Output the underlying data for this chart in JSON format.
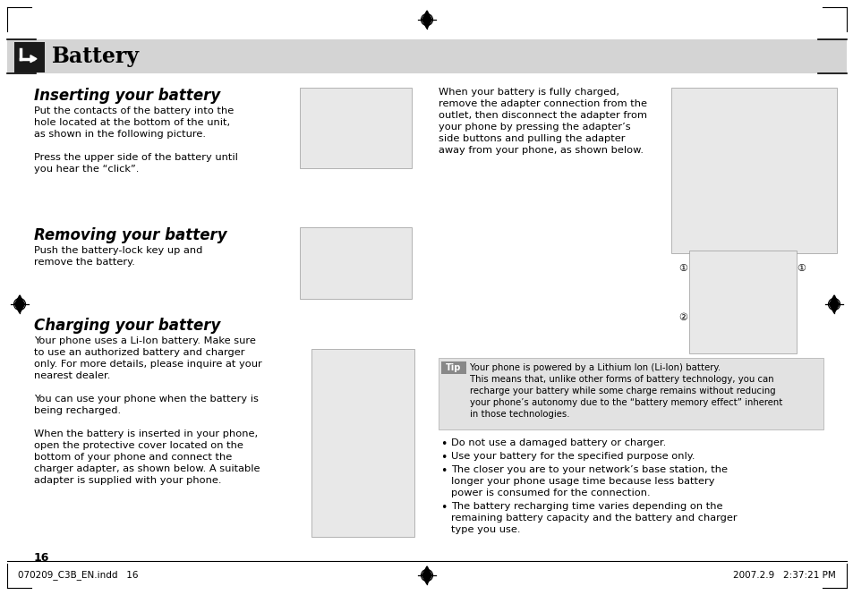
{
  "page_bg": "#ffffff",
  "header_bg": "#d4d4d4",
  "header_icon_bg": "#1a1a1a",
  "header_title": "Battery",
  "section1_title": "Inserting your battery",
  "section1_body": "Put the contacts of the battery into the\nhole located at the bottom of the unit,\nas shown in the following picture.\n\nPress the upper side of the battery until\nyou hear the “click”.",
  "section2_title": "Removing your battery",
  "section2_body": "Push the battery-lock key up and\nremove the battery.",
  "section3_title": "Charging your battery",
  "section3_body": "Your phone uses a Li-Ion battery. Make sure\nto use an authorized battery and charger\nonly. For more details, please inquire at your\nnearest dealer.\n\nYou can use your phone when the battery is\nbeing recharged.\n\nWhen the battery is inserted in your phone,\nopen the protective cover located on the\nbottom of your phone and connect the\ncharger adapter, as shown below. A suitable\nadapter is supplied with your phone.",
  "right_para": "When your battery is fully charged,\nremove the adapter connection from the\noutlet, then disconnect the adapter from\nyour phone by pressing the adapter’s\nside buttons and pulling the adapter\naway from your phone, as shown below.",
  "tip_label": "Tip",
  "tip_body": "Your phone is powered by a Lithium Ion (Li-Ion) battery.\nThis means that, unlike other forms of battery technology, you can\nrecharge your battery while some charge remains without reducing\nyour phone’s autonomy due to the “battery memory effect” inherent\nin those technologies.",
  "bullet1": "Do not use a damaged battery or charger.",
  "bullet2": "Use your battery for the specified purpose only.",
  "bullet3a": "The closer you are to your network’s base station, the",
  "bullet3b": "longer your phone usage time because less battery",
  "bullet3c": "power is consumed for the connection.",
  "bullet4a": "The battery recharging time varies depending on the",
  "bullet4b": "remaining battery capacity and the battery and charger",
  "bullet4c": "type you use.",
  "page_number": "16",
  "footer_left": "070209_C3B_EN.indd   16",
  "footer_right": "2007.2.9   2:37:21 PM",
  "text_color": "#000000",
  "gray_light": "#d4d4d4",
  "tip_bg": "#e2e2e2"
}
